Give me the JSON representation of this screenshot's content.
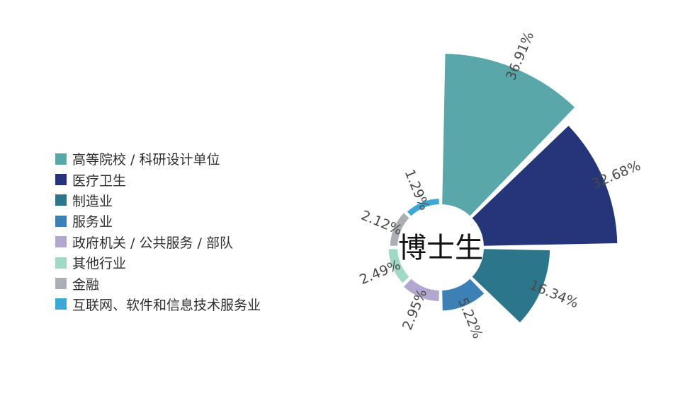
{
  "chart_data": {
    "type": "pie",
    "center_label": "博士生",
    "legend_placement": "left",
    "series": [
      {
        "name": "高等院校 / 科研设计单位",
        "value": 36.91,
        "value_label": "36.91%",
        "color": "#59a7a9"
      },
      {
        "name": "医疗卫生",
        "value": 32.68,
        "value_label": "32.68%",
        "color": "#253579"
      },
      {
        "name": "制造业",
        "value": 16.34,
        "value_label": "16.34%",
        "color": "#2b768b"
      },
      {
        "name": "服务业",
        "value": 5.22,
        "value_label": "5.22%",
        "color": "#3c80b6"
      },
      {
        "name": "政府机关 / 公共服务 / 部队",
        "value": 2.95,
        "value_label": "2.95%",
        "color": "#b3a6cf"
      },
      {
        "name": "其他行业",
        "value": 2.49,
        "value_label": "2.49%",
        "color": "#a0dac4"
      },
      {
        "name": "金融",
        "value": 2.12,
        "value_label": "2.12%",
        "color": "#abaeb4"
      },
      {
        "name": "互联网、软件和信息技术服务业",
        "value": 1.29,
        "value_label": "1.29%",
        "color": "#3ba9d4"
      }
    ]
  }
}
